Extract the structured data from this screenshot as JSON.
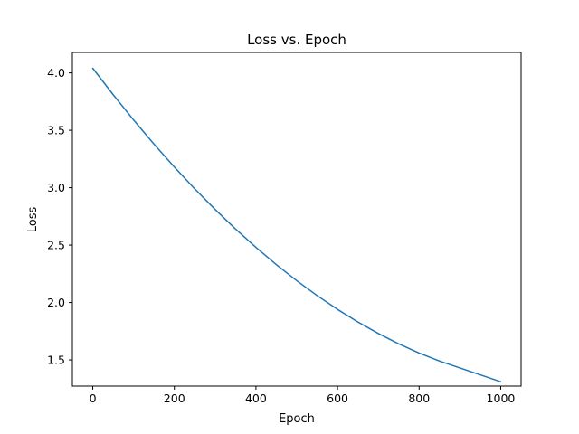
{
  "chart_data": {
    "type": "line",
    "title": "Loss vs. Epoch",
    "xlabel": "Epoch",
    "ylabel": "Loss",
    "xlim": [
      -50,
      1050
    ],
    "ylim": [
      1.272,
      4.178
    ],
    "grid": false,
    "legend": "none",
    "x_ticks": [
      0,
      200,
      400,
      600,
      800,
      1000
    ],
    "x_tick_labels": [
      "0",
      "200",
      "400",
      "600",
      "800",
      "1000"
    ],
    "y_ticks": [
      1.5,
      2.0,
      2.5,
      3.0,
      3.5,
      4.0
    ],
    "y_tick_labels": [
      "1.5",
      "2.0",
      "2.5",
      "3.0",
      "3.5",
      "4.0"
    ],
    "series": [
      {
        "color": "#1f77b4",
        "x": [
          0,
          50,
          100,
          150,
          200,
          250,
          300,
          350,
          400,
          450,
          500,
          550,
          600,
          650,
          700,
          750,
          800,
          850,
          900,
          950,
          1000
        ],
        "y": [
          4.04,
          3.81,
          3.59,
          3.38,
          3.18,
          2.99,
          2.81,
          2.64,
          2.48,
          2.33,
          2.19,
          2.06,
          1.94,
          1.83,
          1.73,
          1.64,
          1.56,
          1.49,
          1.43,
          1.37,
          1.31
        ]
      }
    ]
  }
}
